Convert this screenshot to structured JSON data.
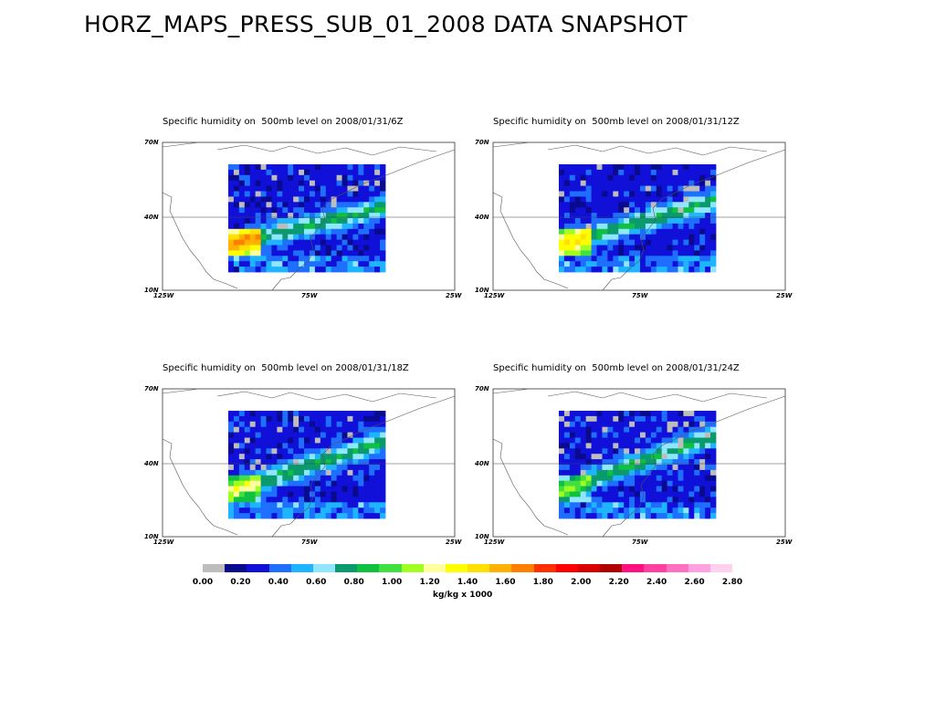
{
  "title": "HORZ_MAPS_PRESS_SUB_01_2008 DATA SNAPSHOT",
  "panels": [
    {
      "title": "Specific humidity on  500mb level on 2008/01/31/6Z",
      "time": "6Z"
    },
    {
      "title": "Specific humidity on  500mb level on 2008/01/31/12Z",
      "time": "12Z"
    },
    {
      "title": "Specific humidity on  500mb level on 2008/01/31/18Z",
      "time": "18Z"
    },
    {
      "title": "Specific humidity on  500mb level on 2008/01/31/24Z",
      "time": "24Z"
    }
  ],
  "axes": {
    "lat_labels": [
      "70N",
      "40N",
      "10N"
    ],
    "lon_labels": [
      "125W",
      "75W",
      "25W"
    ]
  },
  "colorbar": {
    "colors": [
      "#bdbdbd",
      "#0a0a8c",
      "#1010d8",
      "#1f6fff",
      "#1eb4ff",
      "#90e6ff",
      "#0a9a6e",
      "#10c040",
      "#40e040",
      "#a0ff20",
      "#ffffa0",
      "#ffff00",
      "#ffe000",
      "#ffb000",
      "#ff8000",
      "#ff3000",
      "#ff0000",
      "#d80000",
      "#b00000",
      "#ff1080",
      "#ff40a0",
      "#ff70c0",
      "#ffa0e0",
      "#ffd0f0"
    ],
    "tick_labels": [
      "0.00",
      "0.20",
      "0.40",
      "0.60",
      "0.80",
      "1.00",
      "1.20",
      "1.40",
      "1.60",
      "1.80",
      "2.00",
      "2.20",
      "2.40",
      "2.60",
      "2.80"
    ],
    "units": "kg/kg x 1000"
  }
}
